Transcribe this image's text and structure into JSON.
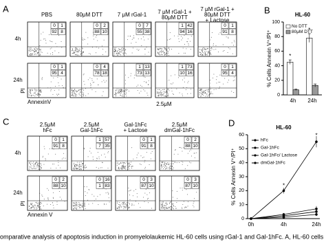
{
  "panel_a": {
    "label": "A",
    "columns": [
      [
        "PBS"
      ],
      [
        "80μM DTT"
      ],
      [
        "7 μM rGal-1"
      ],
      [
        "7 μM rGal-1 +",
        "80μM DTT"
      ],
      [
        "7 μM rGal-1 +",
        "80μM DTT",
        "+ Lactose"
      ]
    ],
    "rows": [
      {
        "label": "4h",
        "quadrants": [
          [
            0,
            1,
            92,
            8
          ],
          [
            0,
            2,
            88,
            10
          ],
          [
            0,
            7,
            55,
            38
          ],
          [
            1,
            42,
            94,
            16
          ],
          [
            0,
            1,
            91,
            8
          ]
        ]
      },
      {
        "label": "24h",
        "quadrants": [
          [
            0,
            1,
            95,
            4
          ],
          [
            0,
            4,
            78,
            18
          ],
          [
            1,
            13,
            73,
            13
          ],
          [
            1,
            73,
            10,
            16
          ],
          [
            0,
            1,
            95,
            4
          ]
        ]
      }
    ],
    "y_axis": "PI",
    "x_axis": "AnnexinV",
    "dose": "2.5μM"
  },
  "panel_c": {
    "label": "C",
    "columns": [
      [
        "2.5μM",
        "hFc"
      ],
      [
        "2.5μM",
        "Gal-1hFc"
      ],
      [
        "Gal-1hFc",
        "+ Lactose"
      ],
      [
        "2.5μM",
        "dmGal-1hFc"
      ]
    ],
    "rows": [
      {
        "label": "4h",
        "quadrants": [
          [
            0,
            1,
            91,
            8
          ],
          [
            1,
            57,
            7,
            35
          ],
          [
            0,
            1,
            91,
            8
          ],
          [
            0,
            2,
            88,
            10
          ]
        ]
      },
      {
        "label": "24h",
        "quadrants": [
          [
            0,
            2,
            88,
            10
          ],
          [
            0,
            16,
            1,
            83
          ],
          [
            0,
            3,
            87,
            10
          ],
          [
            0,
            3,
            87,
            10
          ]
        ]
      }
    ],
    "y_axis": "PI",
    "x_axis": "Annexin V"
  },
  "chart_data": [
    {
      "type": "bar",
      "panel": "B",
      "title": "HL-60",
      "y_label": "% Cells Annexin V⁺/PI⁺",
      "categories": [
        "4h",
        "24h"
      ],
      "series": [
        {
          "name": "No DTT",
          "color": "#ffffff",
          "values": [
            45,
            78
          ],
          "errors": [
            3,
            6
          ]
        },
        {
          "name": "80μM DTT",
          "color": "#999999",
          "values": [
            7,
            13
          ],
          "errors": [
            1,
            2
          ]
        }
      ],
      "ylim": [
        0,
        100
      ],
      "yticks": [
        0,
        20,
        40,
        60,
        80,
        100
      ],
      "annotations": [
        "*",
        "*"
      ]
    },
    {
      "type": "line",
      "panel": "D",
      "title": "HL-60",
      "y_label": "% Cells Annexin V⁺/PI⁺",
      "categories": [
        "0h",
        "4h",
        "24h"
      ],
      "series": [
        {
          "name": "hFc",
          "color": "#000000",
          "values": [
            0,
            2,
            5
          ],
          "errors": [
            0,
            1,
            1
          ]
        },
        {
          "name": "Gal-1hFc",
          "color": "#000000",
          "values": [
            0,
            20,
            55
          ],
          "errors": [
            0,
            2,
            4
          ]
        },
        {
          "name": "Gal-1hFc/ Lactose",
          "color": "#000000",
          "values": [
            0,
            3,
            7
          ],
          "errors": [
            0,
            1,
            2
          ]
        },
        {
          "name": "dmGal-1hFc",
          "color": "#000000",
          "values": [
            0,
            1,
            3
          ],
          "errors": [
            0,
            1,
            1
          ]
        }
      ],
      "ylim": [
        0,
        60
      ],
      "yticks": [
        0,
        10,
        20,
        30,
        40,
        50,
        60
      ],
      "annotations": [
        "*",
        "*"
      ]
    }
  ],
  "caption": "omparative analysis of apoptosis induction in promyelolaukemic HL-60 cells using rGal-1 and Gal-1hFc. A, HL-60 cells"
}
